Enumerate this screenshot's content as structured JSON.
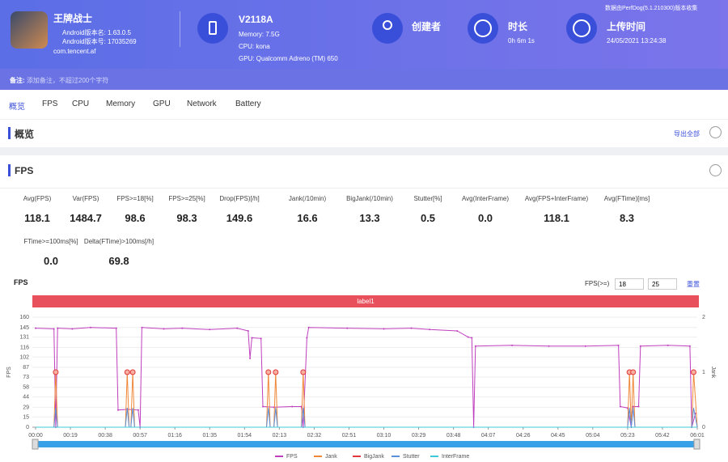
{
  "header": {
    "app_name": "王牌战士",
    "android_version_name": "Android版本名: 1.63.0.5",
    "android_version_code": "Android版本号: 17035269",
    "package": "com.tencent.af",
    "device": "V2118A",
    "memory": "Memory: 7.5G",
    "cpu": "CPU: kona",
    "gpu": "GPU: Qualcomm Adreno (TM) 650",
    "creator_label": "创建者",
    "duration_label": "时长",
    "duration": "0h 6m 1s",
    "upload_label": "上传时间",
    "upload_time": "24/05/2021 13:24:38",
    "source_note": "数据由PerfDog(5.1.210300)版本收集"
  },
  "note": {
    "label": "备注:",
    "placeholder": "添加备注，不超过200个字符"
  },
  "tabs": [
    "概览",
    "FPS",
    "CPU",
    "Memory",
    "GPU",
    "Network",
    "Battery"
  ],
  "overview": {
    "title": "概览",
    "export": "导出全部"
  },
  "fps_section": {
    "title": "FPS",
    "stats": [
      {
        "label": "Avg(FPS)",
        "value": "118.1"
      },
      {
        "label": "Var(FPS)",
        "value": "1484.7"
      },
      {
        "label": "FPS>=18[%]",
        "value": "98.6"
      },
      {
        "label": "FPS>=25[%]",
        "value": "98.3"
      },
      {
        "label": "Drop(FPS)[/h]",
        "value": "149.6"
      },
      {
        "label": "Jank(/10min)",
        "value": "16.6"
      },
      {
        "label": "BigJank(/10min)",
        "value": "13.3"
      },
      {
        "label": "Stutter[%]",
        "value": "0.5"
      },
      {
        "label": "Avg(InterFrame)",
        "value": "0.0"
      },
      {
        "label": "Avg(FPS+InterFrame)",
        "value": "118.1"
      },
      {
        "label": "Avg(FTime)[ms]",
        "value": "8.3"
      },
      {
        "label": "FTime>=100ms[%]",
        "value": "0.0"
      },
      {
        "label": "Delta(FTime)>100ms[/h]",
        "value": "69.8"
      }
    ],
    "controls": {
      "label": "FPS(>=)",
      "low": 18,
      "high": 25,
      "reset": "重置"
    }
  },
  "chart_data": {
    "type": "line",
    "title": "FPS",
    "band_label": "label1",
    "ylabel": "FPS",
    "y2label": "Jank",
    "xlim": [
      0,
      361
    ],
    "xticks": [
      {
        "value": 0,
        "label": "00:00"
      },
      {
        "value": 19,
        "label": "00:19"
      },
      {
        "value": 38,
        "label": "00:38"
      },
      {
        "value": 57,
        "label": "00:57"
      },
      {
        "value": 76,
        "label": "01:16"
      },
      {
        "value": 95,
        "label": "01:35"
      },
      {
        "value": 114,
        "label": "01:54"
      },
      {
        "value": 133,
        "label": "02:13"
      },
      {
        "value": 152,
        "label": "02:32"
      },
      {
        "value": 171,
        "label": "02:51"
      },
      {
        "value": 190,
        "label": "03:10"
      },
      {
        "value": 209,
        "label": "03:29"
      },
      {
        "value": 228,
        "label": "03:48"
      },
      {
        "value": 247,
        "label": "04:07"
      },
      {
        "value": 266,
        "label": "04:26"
      },
      {
        "value": 285,
        "label": "04:45"
      },
      {
        "value": 304,
        "label": "05:04"
      },
      {
        "value": 323,
        "label": "05:23"
      },
      {
        "value": 342,
        "label": "05:42"
      },
      {
        "value": 361,
        "label": "06:01"
      }
    ],
    "ylim": [
      0,
      160
    ],
    "yticks": [
      0,
      15,
      29,
      44,
      58,
      73,
      87,
      102,
      116,
      131,
      145,
      160
    ],
    "y2lim": [
      0,
      2
    ],
    "y2ticks": [
      0,
      1,
      2
    ],
    "series": [
      {
        "name": "FPS",
        "color": "#c03fbf",
        "x": [
          0,
          10,
          11,
          12,
          20,
          30,
          44,
          45,
          50,
          56,
          57,
          58,
          70,
          80,
          95,
          110,
          116,
          117,
          118,
          123,
          124,
          130,
          140,
          145,
          146,
          148,
          149,
          170,
          190,
          205,
          215,
          230,
          236,
          238,
          239,
          240,
          260,
          280,
          300,
          318,
          319,
          323,
          325,
          326,
          329,
          330,
          345,
          357,
          358,
          360
        ],
        "values": [
          144,
          143,
          0,
          144,
          143,
          145,
          144,
          25,
          26,
          25,
          0,
          145,
          143,
          144,
          142,
          144,
          140,
          100,
          130,
          129,
          30,
          29,
          30,
          30,
          0,
          130,
          145,
          144,
          143,
          144,
          142,
          140,
          131,
          130,
          0,
          118,
          119,
          118,
          118,
          119,
          30,
          28,
          0,
          30,
          30,
          118,
          119,
          118,
          0,
          20
        ]
      },
      {
        "name": "Jank",
        "color": "#f0883a",
        "axis": "y2",
        "x": [
          0,
          10,
          11,
          12,
          49,
          50,
          51,
          52,
          53,
          54,
          126,
          127,
          128,
          130,
          131,
          132,
          145,
          146,
          147,
          323,
          324,
          325,
          326,
          327,
          358,
          359,
          361
        ],
        "values": [
          0,
          0,
          1,
          0,
          0,
          1,
          0,
          0,
          1,
          0,
          0,
          1,
          0,
          0,
          1,
          0,
          0,
          1,
          0,
          0,
          1,
          0,
          1,
          0,
          0,
          1,
          0
        ]
      },
      {
        "name": "BigJank",
        "color": "#e0383c",
        "axis": "y2",
        "x": [
          0,
          361
        ],
        "values": [
          0,
          0
        ]
      },
      {
        "name": "Stutter",
        "color": "#5b8fd8",
        "axis": "y2",
        "x": [
          0,
          10,
          11,
          12,
          49,
          50,
          51,
          52,
          53,
          54,
          126,
          127,
          128,
          130,
          131,
          132,
          145,
          146,
          147,
          323,
          324,
          325,
          326,
          327,
          358,
          359,
          361
        ],
        "values": [
          0,
          0,
          0.35,
          0,
          0,
          0.35,
          0,
          0,
          0.35,
          0,
          0,
          0.35,
          0,
          0,
          0.35,
          0,
          0,
          0.35,
          0,
          0,
          0.35,
          0,
          0.35,
          0,
          0,
          0.35,
          0
        ]
      },
      {
        "name": "InterFrame",
        "color": "#3fc9d8",
        "axis": "y2",
        "x": [
          0,
          361
        ],
        "values": [
          0,
          0
        ]
      }
    ]
  }
}
